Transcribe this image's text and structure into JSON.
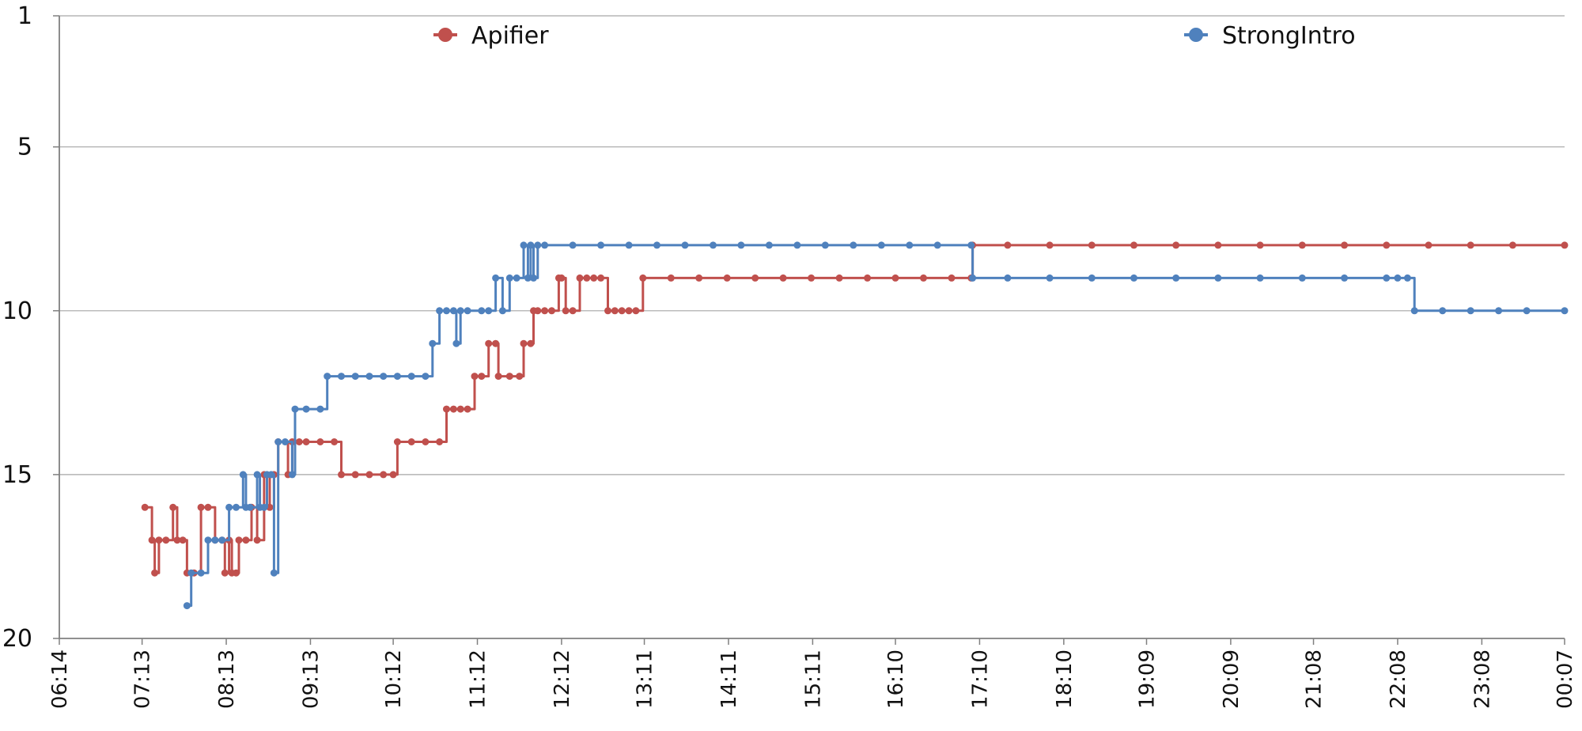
{
  "chart_data": {
    "type": "line",
    "title": "",
    "xlabel": "",
    "ylabel": "",
    "y_reversed": true,
    "ylim": [
      1,
      20
    ],
    "y_ticks": [
      "1",
      "5",
      "10",
      "15",
      "20"
    ],
    "x_ticks": [
      "06:14",
      "07:13",
      "08:13",
      "09:13",
      "10:12",
      "11:12",
      "12:12",
      "13:11",
      "14:11",
      "15:11",
      "16:10",
      "17:10",
      "18:10",
      "19:09",
      "20:09",
      "21:08",
      "22:08",
      "23:08",
      "00:07"
    ],
    "grid": "horizontal",
    "legend_position": "top",
    "series": [
      {
        "name": "Apifier",
        "color": "#c0504d",
        "points": [
          [
            "07:15",
            16
          ],
          [
            "07:20",
            17
          ],
          [
            "07:22",
            18
          ],
          [
            "07:25",
            17
          ],
          [
            "07:30",
            17
          ],
          [
            "07:35",
            16
          ],
          [
            "07:38",
            17
          ],
          [
            "07:42",
            17
          ],
          [
            "07:45",
            18
          ],
          [
            "07:50",
            18
          ],
          [
            "07:55",
            16
          ],
          [
            "08:00",
            16
          ],
          [
            "08:05",
            17
          ],
          [
            "08:10",
            17
          ],
          [
            "08:12",
            18
          ],
          [
            "08:15",
            17
          ],
          [
            "08:17",
            18
          ],
          [
            "08:20",
            18
          ],
          [
            "08:22",
            17
          ],
          [
            "08:27",
            17
          ],
          [
            "08:31",
            16
          ],
          [
            "08:35",
            17
          ],
          [
            "08:40",
            15
          ],
          [
            "08:44",
            16
          ],
          [
            "08:47",
            15
          ],
          [
            "08:50",
            14
          ],
          [
            "08:57",
            15
          ],
          [
            "09:00",
            14
          ],
          [
            "09:05",
            14
          ],
          [
            "09:10",
            14
          ],
          [
            "09:20",
            14
          ],
          [
            "09:30",
            14
          ],
          [
            "09:35",
            15
          ],
          [
            "09:45",
            15
          ],
          [
            "09:55",
            15
          ],
          [
            "10:05",
            15
          ],
          [
            "10:12",
            15
          ],
          [
            "10:15",
            14
          ],
          [
            "10:25",
            14
          ],
          [
            "10:35",
            14
          ],
          [
            "10:45",
            14
          ],
          [
            "10:50",
            13
          ],
          [
            "10:55",
            13
          ],
          [
            "11:00",
            13
          ],
          [
            "11:05",
            13
          ],
          [
            "11:10",
            12
          ],
          [
            "11:15",
            12
          ],
          [
            "11:20",
            11
          ],
          [
            "11:25",
            11
          ],
          [
            "11:27",
            12
          ],
          [
            "11:35",
            12
          ],
          [
            "11:42",
            12
          ],
          [
            "11:45",
            11
          ],
          [
            "11:50",
            11
          ],
          [
            "11:52",
            10
          ],
          [
            "11:55",
            10
          ],
          [
            "12:00",
            10
          ],
          [
            "12:05",
            10
          ],
          [
            "12:10",
            9
          ],
          [
            "12:12",
            9
          ],
          [
            "12:15",
            10
          ],
          [
            "12:20",
            10
          ],
          [
            "12:25",
            9
          ],
          [
            "12:30",
            9
          ],
          [
            "12:35",
            9
          ],
          [
            "12:40",
            9
          ],
          [
            "12:45",
            10
          ],
          [
            "12:50",
            10
          ],
          [
            "12:55",
            10
          ],
          [
            "13:00",
            10
          ],
          [
            "13:05",
            10
          ],
          [
            "13:10",
            9
          ],
          [
            "13:30",
            9
          ],
          [
            "13:50",
            9
          ],
          [
            "14:10",
            9
          ],
          [
            "14:30",
            9
          ],
          [
            "14:50",
            9
          ],
          [
            "15:10",
            9
          ],
          [
            "15:30",
            9
          ],
          [
            "15:50",
            9
          ],
          [
            "16:10",
            9
          ],
          [
            "16:30",
            9
          ],
          [
            "16:50",
            9
          ],
          [
            "17:04",
            9
          ],
          [
            "17:05",
            8
          ],
          [
            "17:30",
            8
          ],
          [
            "18:00",
            8
          ],
          [
            "18:30",
            8
          ],
          [
            "19:00",
            8
          ],
          [
            "19:30",
            8
          ],
          [
            "20:00",
            8
          ],
          [
            "20:30",
            8
          ],
          [
            "21:00",
            8
          ],
          [
            "21:30",
            8
          ],
          [
            "22:00",
            8
          ],
          [
            "22:30",
            8
          ],
          [
            "23:00",
            8
          ],
          [
            "23:30",
            8
          ],
          [
            "00:07",
            8
          ]
        ]
      },
      {
        "name": "StrongIntro",
        "color": "#4f81bd",
        "points": [
          [
            "07:45",
            19
          ],
          [
            "07:48",
            18
          ],
          [
            "07:55",
            18
          ],
          [
            "08:00",
            17
          ],
          [
            "08:05",
            17
          ],
          [
            "08:10",
            17
          ],
          [
            "08:15",
            16
          ],
          [
            "08:20",
            16
          ],
          [
            "08:25",
            15
          ],
          [
            "08:27",
            16
          ],
          [
            "08:30",
            16
          ],
          [
            "08:35",
            15
          ],
          [
            "08:37",
            16
          ],
          [
            "08:40",
            16
          ],
          [
            "08:42",
            15
          ],
          [
            "08:45",
            15
          ],
          [
            "08:47",
            18
          ],
          [
            "08:50",
            14
          ],
          [
            "08:55",
            14
          ],
          [
            "09:00",
            15
          ],
          [
            "09:02",
            13
          ],
          [
            "09:10",
            13
          ],
          [
            "09:20",
            13
          ],
          [
            "09:25",
            12
          ],
          [
            "09:35",
            12
          ],
          [
            "09:45",
            12
          ],
          [
            "09:55",
            12
          ],
          [
            "10:05",
            12
          ],
          [
            "10:15",
            12
          ],
          [
            "10:25",
            12
          ],
          [
            "10:35",
            12
          ],
          [
            "10:40",
            11
          ],
          [
            "10:45",
            10
          ],
          [
            "10:50",
            10
          ],
          [
            "10:55",
            10
          ],
          [
            "10:57",
            11
          ],
          [
            "11:00",
            10
          ],
          [
            "11:05",
            10
          ],
          [
            "11:15",
            10
          ],
          [
            "11:20",
            10
          ],
          [
            "11:25",
            9
          ],
          [
            "11:30",
            10
          ],
          [
            "11:35",
            9
          ],
          [
            "11:40",
            9
          ],
          [
            "11:45",
            8
          ],
          [
            "11:48",
            9
          ],
          [
            "11:50",
            8
          ],
          [
            "11:52",
            9
          ],
          [
            "11:55",
            8
          ],
          [
            "12:00",
            8
          ],
          [
            "12:20",
            8
          ],
          [
            "12:40",
            8
          ],
          [
            "13:00",
            8
          ],
          [
            "13:20",
            8
          ],
          [
            "13:40",
            8
          ],
          [
            "14:00",
            8
          ],
          [
            "14:20",
            8
          ],
          [
            "14:40",
            8
          ],
          [
            "15:00",
            8
          ],
          [
            "15:20",
            8
          ],
          [
            "15:40",
            8
          ],
          [
            "16:00",
            8
          ],
          [
            "16:20",
            8
          ],
          [
            "16:40",
            8
          ],
          [
            "17:04",
            8
          ],
          [
            "17:05",
            9
          ],
          [
            "17:30",
            9
          ],
          [
            "18:00",
            9
          ],
          [
            "18:30",
            9
          ],
          [
            "19:00",
            9
          ],
          [
            "19:30",
            9
          ],
          [
            "20:00",
            9
          ],
          [
            "20:30",
            9
          ],
          [
            "21:00",
            9
          ],
          [
            "21:30",
            9
          ],
          [
            "22:00",
            9
          ],
          [
            "22:08",
            9
          ],
          [
            "22:15",
            9
          ],
          [
            "22:20",
            10
          ],
          [
            "22:40",
            10
          ],
          [
            "23:00",
            10
          ],
          [
            "23:20",
            10
          ],
          [
            "23:40",
            10
          ],
          [
            "00:07",
            10
          ]
        ]
      }
    ]
  }
}
